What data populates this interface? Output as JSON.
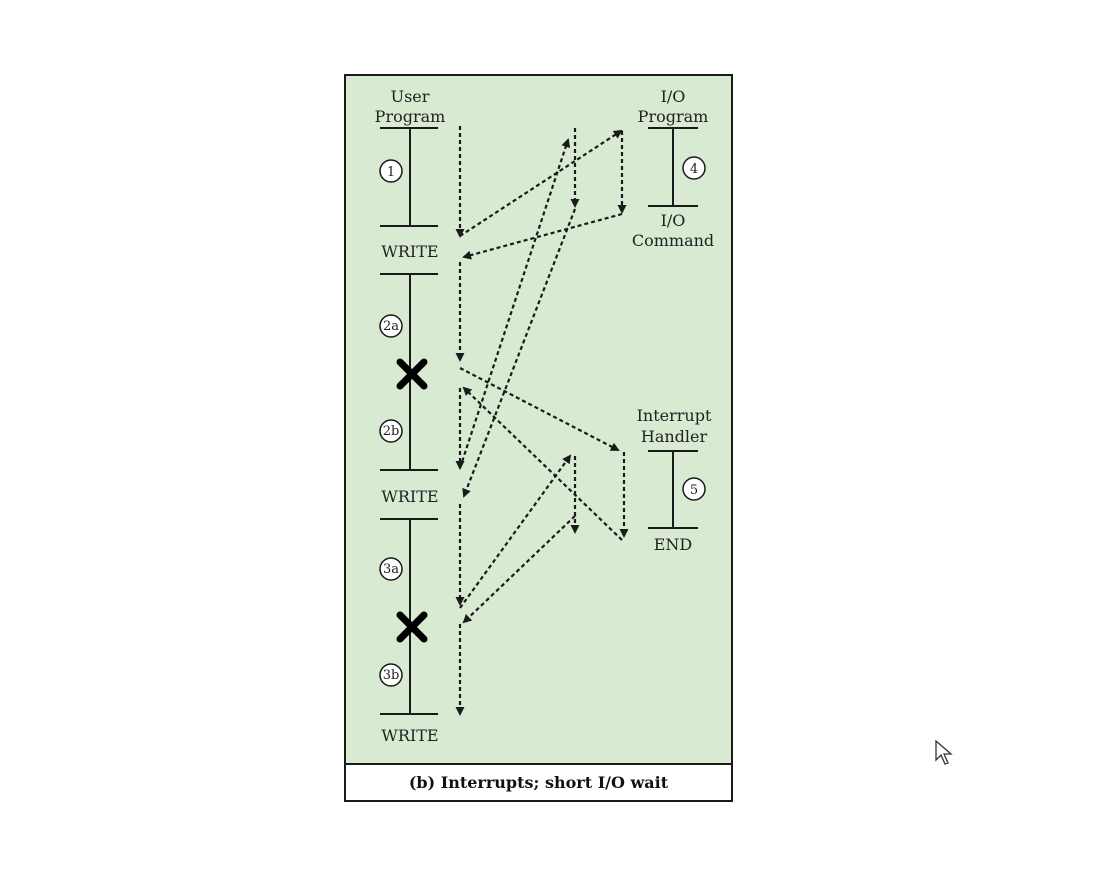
{
  "labels": {
    "user_program_line1": "User",
    "user_program_line2": "Program",
    "io_program_line1": "I/O",
    "io_program_line2": "Program",
    "io_command_line1": "I/O",
    "io_command_line2": "Command",
    "interrupt_handler_line1": "Interrupt",
    "interrupt_handler_line2": "Handler",
    "end": "END",
    "write_1": "WRITE",
    "write_2": "WRITE",
    "write_3": "WRITE"
  },
  "segments": {
    "seg1": "1",
    "seg2a": "2a",
    "seg2b": "2b",
    "seg3a": "3a",
    "seg3b": "3b",
    "seg4": "4",
    "seg5": "5"
  },
  "caption": "(b) Interrupts; short I/O wait",
  "colors": {
    "panel_bg": "#d8ead2",
    "line": "#1a1a1a"
  },
  "icons": {
    "interrupt_marker": "x-mark-icon",
    "pointer": "mouse-cursor-icon"
  }
}
